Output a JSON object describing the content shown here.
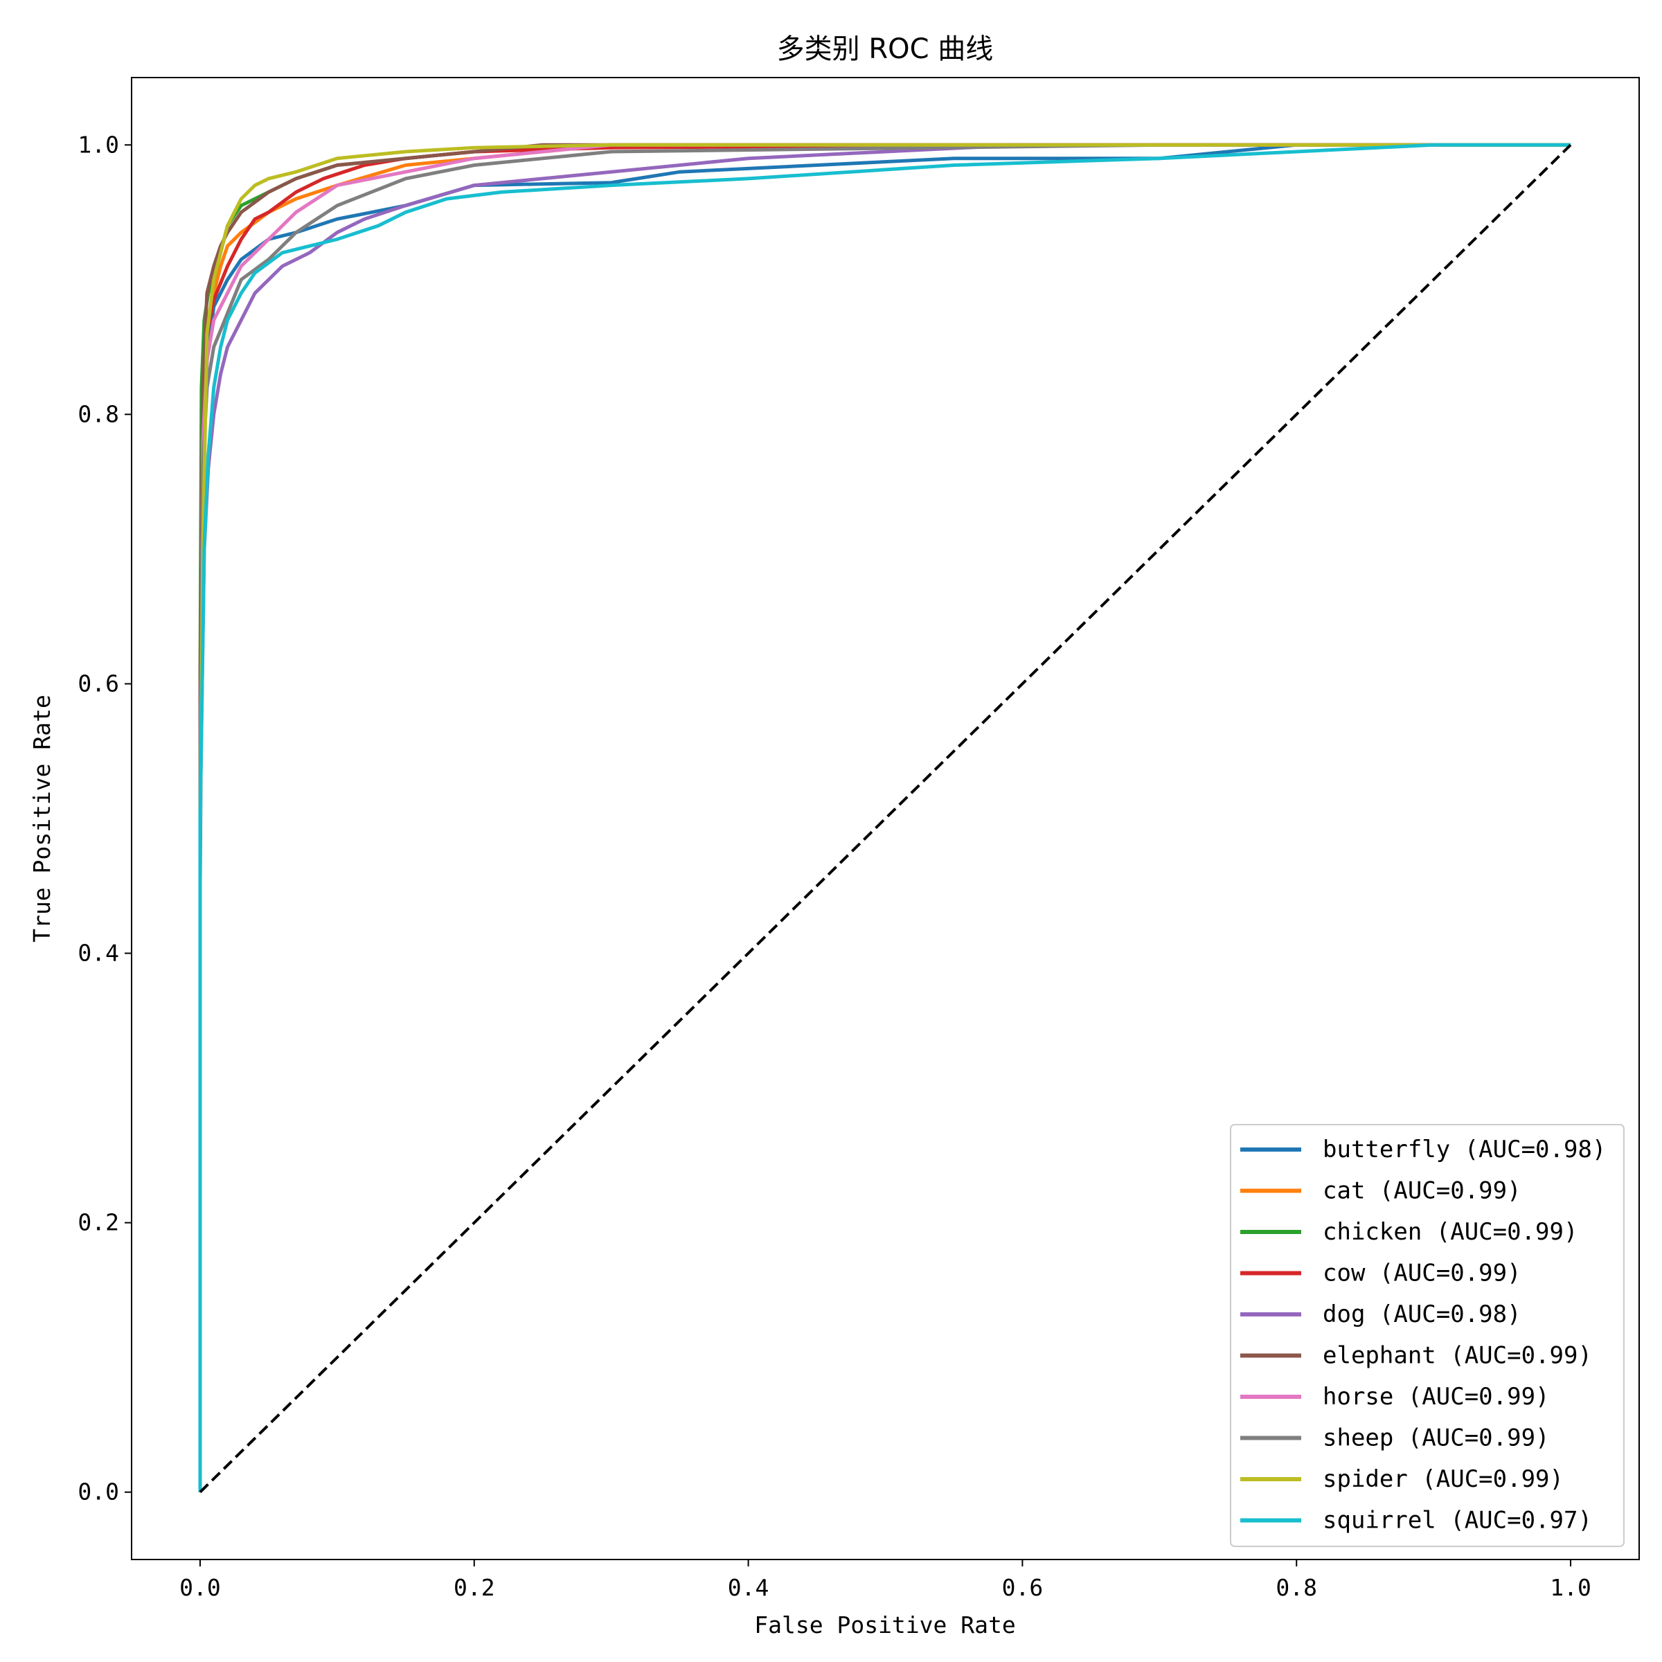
{
  "chart_data": {
    "type": "line",
    "title": "多类别 ROC 曲线",
    "xlabel": "False Positive Rate",
    "ylabel": "True Positive Rate",
    "xlim": [
      -0.05,
      1.05
    ],
    "ylim": [
      -0.05,
      1.05
    ],
    "xticks": [
      0.0,
      0.2,
      0.4,
      0.6,
      0.8,
      1.0
    ],
    "yticks": [
      0.0,
      0.2,
      0.4,
      0.6,
      0.8,
      1.0
    ],
    "xtick_labels": [
      "0.0",
      "0.2",
      "0.4",
      "0.6",
      "0.8",
      "1.0"
    ],
    "ytick_labels": [
      "0.0",
      "0.2",
      "0.4",
      "0.6",
      "0.8",
      "1.0"
    ],
    "legend_position": "lower-right",
    "grid": false,
    "series": [
      {
        "name": "butterfly (AUC=0.98)",
        "color": "#1f77b4",
        "x": [
          0,
          0,
          0.002,
          0.005,
          0.01,
          0.02,
          0.03,
          0.05,
          0.07,
          0.1,
          0.15,
          0.2,
          0.3,
          0.35,
          0.45,
          0.55,
          0.7,
          0.8,
          1.0
        ],
        "y": [
          0,
          0.45,
          0.75,
          0.84,
          0.88,
          0.9,
          0.915,
          0.93,
          0.935,
          0.945,
          0.955,
          0.97,
          0.972,
          0.98,
          0.985,
          0.99,
          0.99,
          1.0,
          1.0
        ]
      },
      {
        "name": "cat (AUC=0.99)",
        "color": "#ff7f0e",
        "x": [
          0,
          0,
          0.002,
          0.005,
          0.01,
          0.015,
          0.02,
          0.03,
          0.05,
          0.07,
          0.1,
          0.15,
          0.2,
          0.3,
          0.5,
          1.0
        ],
        "y": [
          0,
          0.5,
          0.78,
          0.86,
          0.89,
          0.91,
          0.925,
          0.935,
          0.95,
          0.96,
          0.97,
          0.985,
          0.99,
          1.0,
          1.0,
          1.0
        ]
      },
      {
        "name": "chicken (AUC=0.99)",
        "color": "#2ca02c",
        "x": [
          0,
          0,
          0.001,
          0.003,
          0.006,
          0.01,
          0.015,
          0.02,
          0.03,
          0.05,
          0.07,
          0.1,
          0.15,
          0.2,
          0.3,
          1.0
        ],
        "y": [
          0,
          0.6,
          0.82,
          0.87,
          0.89,
          0.9,
          0.92,
          0.94,
          0.955,
          0.965,
          0.975,
          0.985,
          0.99,
          0.995,
          1.0,
          1.0
        ]
      },
      {
        "name": "cow (AUC=0.99)",
        "color": "#d62728",
        "x": [
          0,
          0,
          0.002,
          0.005,
          0.01,
          0.02,
          0.03,
          0.04,
          0.05,
          0.07,
          0.09,
          0.12,
          0.15,
          0.2,
          0.3,
          0.6,
          1.0
        ],
        "y": [
          0,
          0.55,
          0.8,
          0.86,
          0.885,
          0.91,
          0.93,
          0.945,
          0.95,
          0.965,
          0.975,
          0.985,
          0.99,
          0.995,
          0.998,
          1.0,
          1.0
        ]
      },
      {
        "name": "dog (AUC=0.98)",
        "color": "#9467bd",
        "x": [
          0,
          0,
          0.003,
          0.006,
          0.01,
          0.015,
          0.02,
          0.03,
          0.04,
          0.06,
          0.08,
          0.1,
          0.12,
          0.15,
          0.2,
          0.25,
          0.3,
          0.4,
          0.5,
          0.6,
          1.0
        ],
        "y": [
          0,
          0.5,
          0.7,
          0.76,
          0.8,
          0.83,
          0.85,
          0.87,
          0.89,
          0.91,
          0.92,
          0.935,
          0.945,
          0.955,
          0.97,
          0.975,
          0.98,
          0.99,
          0.995,
          1.0,
          1.0
        ]
      },
      {
        "name": "elephant (AUC=0.99)",
        "color": "#8c564b",
        "x": [
          0,
          0,
          0.002,
          0.005,
          0.01,
          0.015,
          0.02,
          0.03,
          0.05,
          0.07,
          0.1,
          0.15,
          0.25,
          1.0
        ],
        "y": [
          0,
          0.6,
          0.82,
          0.89,
          0.91,
          0.925,
          0.935,
          0.95,
          0.965,
          0.975,
          0.985,
          0.99,
          1.0,
          1.0
        ]
      },
      {
        "name": "horse (AUC=0.99)",
        "color": "#e377c2",
        "x": [
          0,
          0,
          0.002,
          0.005,
          0.01,
          0.02,
          0.03,
          0.05,
          0.07,
          0.1,
          0.15,
          0.2,
          0.3,
          1.0
        ],
        "y": [
          0,
          0.5,
          0.78,
          0.84,
          0.87,
          0.89,
          0.91,
          0.93,
          0.95,
          0.97,
          0.98,
          0.99,
          1.0,
          1.0
        ]
      },
      {
        "name": "sheep (AUC=0.99)",
        "color": "#7f7f7f",
        "x": [
          0,
          0,
          0.002,
          0.005,
          0.01,
          0.02,
          0.03,
          0.05,
          0.07,
          0.1,
          0.15,
          0.2,
          0.3,
          0.7,
          1.0
        ],
        "y": [
          0,
          0.55,
          0.76,
          0.82,
          0.85,
          0.875,
          0.9,
          0.915,
          0.935,
          0.955,
          0.975,
          0.985,
          0.995,
          1.0,
          1.0
        ]
      },
      {
        "name": "spider (AUC=0.99)",
        "color": "#bcbd22",
        "x": [
          0,
          0,
          0.002,
          0.005,
          0.01,
          0.015,
          0.02,
          0.025,
          0.03,
          0.04,
          0.05,
          0.07,
          0.1,
          0.15,
          0.2,
          0.3,
          0.5,
          1.0
        ],
        "y": [
          0,
          0.48,
          0.7,
          0.86,
          0.9,
          0.92,
          0.94,
          0.95,
          0.96,
          0.97,
          0.975,
          0.98,
          0.99,
          0.995,
          0.998,
          1.0,
          1.0,
          1.0
        ]
      },
      {
        "name": "squirrel (AUC=0.97)",
        "color": "#17becf",
        "x": [
          0,
          0,
          0.003,
          0.006,
          0.01,
          0.015,
          0.02,
          0.03,
          0.04,
          0.06,
          0.08,
          0.1,
          0.13,
          0.15,
          0.18,
          0.22,
          0.3,
          0.4,
          0.55,
          0.7,
          0.8,
          0.9,
          1.0
        ],
        "y": [
          0,
          0.5,
          0.7,
          0.77,
          0.82,
          0.85,
          0.87,
          0.89,
          0.905,
          0.92,
          0.925,
          0.93,
          0.94,
          0.95,
          0.96,
          0.965,
          0.97,
          0.975,
          0.985,
          0.99,
          0.995,
          1.0,
          1.0
        ]
      },
      {
        "name": "",
        "color": "#000000",
        "dashed": true,
        "x": [
          0,
          1
        ],
        "y": [
          0,
          1
        ]
      }
    ]
  }
}
